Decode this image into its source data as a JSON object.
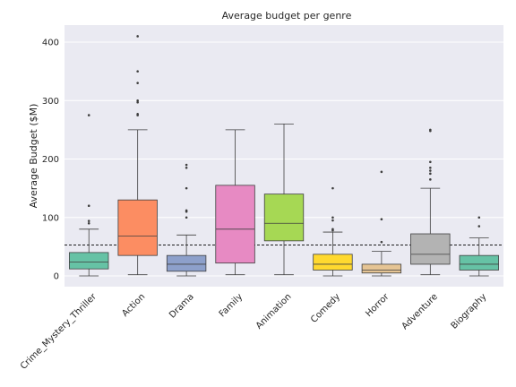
{
  "chart_data": {
    "type": "box",
    "title": "Average budget per genre",
    "xlabel": "",
    "ylabel": "Average Budget ($M)",
    "ylim": [
      -20,
      420
    ],
    "yticks": [
      0,
      100,
      200,
      300,
      400
    ],
    "grid": true,
    "reference_line": {
      "y": 53,
      "style": "dashed"
    },
    "categories": [
      "Crime_Mystery_Thriller",
      "Action",
      "Drama",
      "Family",
      "Animation",
      "Comedy",
      "Horror",
      "Adventure",
      "Biography"
    ],
    "series": [
      {
        "category": "Crime_Mystery_Thriller",
        "color": "#66c2a5",
        "whisker_low": 0,
        "q1": 12,
        "median": 24,
        "q3": 40,
        "whisker_high": 80,
        "outliers": [
          90,
          94,
          120,
          275
        ]
      },
      {
        "category": "Action",
        "color": "#fc8d62",
        "whisker_low": 2,
        "q1": 35,
        "median": 68,
        "q3": 130,
        "whisker_high": 250,
        "outliers": [
          275,
          277,
          297,
          300,
          330,
          350,
          410
        ]
      },
      {
        "category": "Drama",
        "color": "#8da0cb",
        "whisker_low": 0,
        "q1": 8,
        "median": 20,
        "q3": 35,
        "whisker_high": 70,
        "outliers": [
          100,
          110,
          112,
          150,
          185,
          190
        ]
      },
      {
        "category": "Family",
        "color": "#e78ac3",
        "whisker_low": 2,
        "q1": 22,
        "median": 80,
        "q3": 155,
        "whisker_high": 250,
        "outliers": []
      },
      {
        "category": "Animation",
        "color": "#a6d854",
        "whisker_low": 2,
        "q1": 60,
        "median": 90,
        "q3": 140,
        "whisker_high": 260,
        "outliers": []
      },
      {
        "category": "Comedy",
        "color": "#ffd92f",
        "whisker_low": 0,
        "q1": 10,
        "median": 20,
        "q3": 37,
        "whisker_high": 75,
        "outliers": [
          78,
          80,
          95,
          100,
          150
        ]
      },
      {
        "category": "Horror",
        "color": "#e5c494",
        "whisker_low": 0,
        "q1": 5,
        "median": 10,
        "q3": 20,
        "whisker_high": 42,
        "outliers": [
          58,
          97,
          178
        ]
      },
      {
        "category": "Adventure",
        "color": "#b3b3b3",
        "whisker_low": 2,
        "q1": 20,
        "median": 37,
        "q3": 72,
        "whisker_high": 150,
        "outliers": [
          165,
          175,
          180,
          185,
          195,
          248,
          250
        ]
      },
      {
        "category": "Biography",
        "color": "#66c2a5",
        "whisker_low": 0,
        "q1": 10,
        "median": 20,
        "q3": 35,
        "whisker_high": 65,
        "outliers": [
          85,
          100
        ]
      }
    ]
  }
}
